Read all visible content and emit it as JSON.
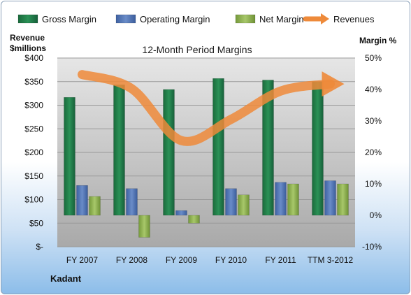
{
  "chart_data": {
    "type": "bar",
    "title": "12-Month Period Margins",
    "company": "Kadant",
    "ylabel_left": [
      "Revenue",
      "$millions"
    ],
    "ylabel_right": "Margin %",
    "categories": [
      "FY 2007",
      "FY 2008",
      "FY 2009",
      "FY 2010",
      "FY 2011",
      "TTM 3-2012"
    ],
    "left_axis": {
      "ylim": [
        0,
        400
      ],
      "ticks": [
        0,
        50,
        100,
        150,
        200,
        250,
        300,
        350,
        400
      ],
      "tick_labels": [
        "$-",
        "$50",
        "$100",
        "$150",
        "$200",
        "$250",
        "$300",
        "$350",
        "$400"
      ]
    },
    "right_axis": {
      "ylim": [
        -10,
        50
      ],
      "ticks": [
        -10,
        0,
        10,
        20,
        30,
        40,
        50
      ],
      "tick_labels": [
        "-10%",
        "0%",
        "10%",
        "20%",
        "30%",
        "40%",
        "50%"
      ]
    },
    "legend": {
      "position": "top",
      "items": [
        {
          "name": "Gross Margin",
          "kind": "bar",
          "color": "#1f7a45"
        },
        {
          "name": "Operating Margin",
          "kind": "bar",
          "color": "#4f72b0"
        },
        {
          "name": "Net Margin",
          "kind": "bar",
          "color": "#8fb050"
        },
        {
          "name": "Revenues",
          "kind": "arrow",
          "color": "#ee8a3a"
        }
      ]
    },
    "series": [
      {
        "name": "Gross Margin",
        "axis": "right",
        "color": "#1f7a45",
        "values": [
          37.5,
          41.5,
          40.0,
          43.5,
          43.0,
          42.5
        ]
      },
      {
        "name": "Operating Margin",
        "axis": "right",
        "color": "#4f72b0",
        "values": [
          9.5,
          8.5,
          1.5,
          8.5,
          10.5,
          11.0
        ]
      },
      {
        "name": "Net Margin",
        "axis": "right",
        "color": "#8fb050",
        "values": [
          6.0,
          -7.0,
          -2.5,
          6.5,
          10.0,
          10.0
        ]
      },
      {
        "name": "Revenues",
        "axis": "left",
        "type": "line",
        "color": "#ee8a3a",
        "values": [
          365,
          335,
          225,
          270,
          330,
          345
        ]
      }
    ],
    "grid": true
  }
}
